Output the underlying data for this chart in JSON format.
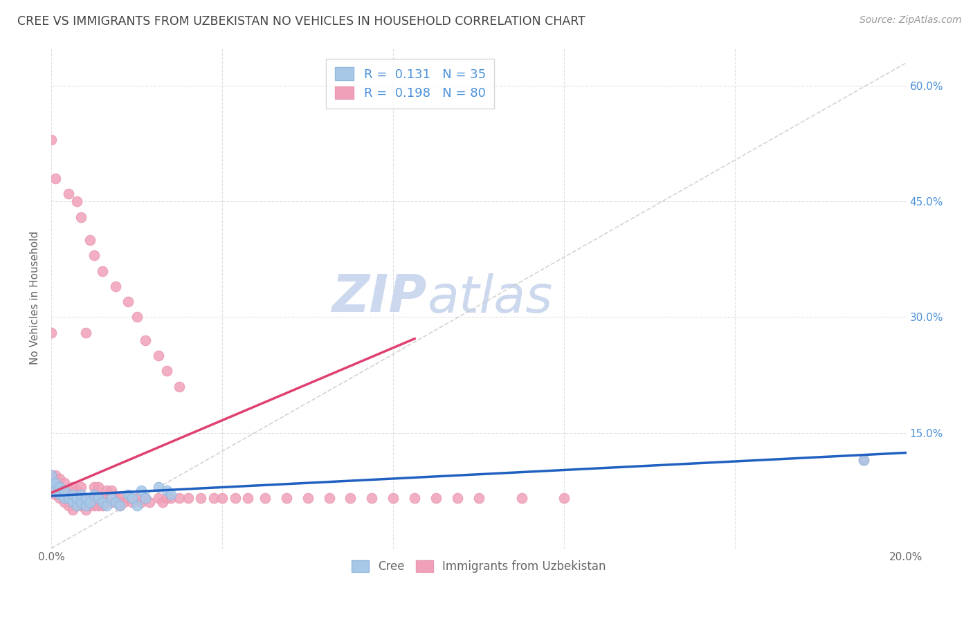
{
  "title": "CREE VS IMMIGRANTS FROM UZBEKISTAN NO VEHICLES IN HOUSEHOLD CORRELATION CHART",
  "source": "Source: ZipAtlas.com",
  "ylabel": "No Vehicles in Household",
  "xlabel": "",
  "xlim": [
    0.0,
    0.2
  ],
  "ylim": [
    0.0,
    0.65
  ],
  "xticks": [
    0.0,
    0.04,
    0.08,
    0.12,
    0.16,
    0.2
  ],
  "xtick_labels": [
    "0.0%",
    "",
    "",
    "",
    "",
    "20.0%"
  ],
  "yticks": [
    0.0,
    0.15,
    0.3,
    0.45,
    0.6
  ],
  "cree_color": "#a8c8e8",
  "uzbek_color": "#f0a0b8",
  "cree_line_color": "#2060c0",
  "uzbek_line_color": "#e04070",
  "diagonal_color": "#c8c8c8",
  "title_color": "#444444",
  "watermark_zip_color": "#c8d8f0",
  "watermark_atlas_color": "#c8d8f0",
  "right_tick_color": "#4a90d9",
  "cree_scatter_x": [
    0.0,
    0.0,
    0.001,
    0.001,
    0.002,
    0.002,
    0.003,
    0.003,
    0.004,
    0.005,
    0.005,
    0.006,
    0.006,
    0.007,
    0.007,
    0.008,
    0.008,
    0.009,
    0.01,
    0.011,
    0.012,
    0.013,
    0.014,
    0.015,
    0.016,
    0.018,
    0.019,
    0.02,
    0.021,
    0.022,
    0.025,
    0.027,
    0.028,
    0.19
  ],
  "cree_scatter_y": [
    0.085,
    0.095,
    0.075,
    0.085,
    0.07,
    0.08,
    0.065,
    0.075,
    0.065,
    0.06,
    0.07,
    0.055,
    0.065,
    0.06,
    0.07,
    0.055,
    0.065,
    0.06,
    0.07,
    0.065,
    0.06,
    0.055,
    0.065,
    0.06,
    0.055,
    0.07,
    0.065,
    0.055,
    0.075,
    0.065,
    0.08,
    0.075,
    0.07,
    0.115
  ],
  "uzbek_scatter_x": [
    0.0,
    0.0,
    0.0,
    0.001,
    0.001,
    0.001,
    0.001,
    0.002,
    0.002,
    0.002,
    0.002,
    0.003,
    0.003,
    0.003,
    0.003,
    0.004,
    0.004,
    0.004,
    0.005,
    0.005,
    0.005,
    0.005,
    0.006,
    0.006,
    0.006,
    0.007,
    0.007,
    0.007,
    0.008,
    0.008,
    0.008,
    0.009,
    0.009,
    0.01,
    0.01,
    0.01,
    0.011,
    0.011,
    0.011,
    0.012,
    0.012,
    0.013,
    0.013,
    0.014,
    0.014,
    0.015,
    0.016,
    0.016,
    0.017,
    0.018,
    0.019,
    0.02,
    0.021,
    0.022,
    0.023,
    0.025,
    0.026,
    0.027,
    0.028,
    0.03,
    0.032,
    0.035,
    0.038,
    0.04,
    0.043,
    0.046,
    0.05,
    0.055,
    0.06,
    0.065,
    0.07,
    0.075,
    0.08,
    0.085,
    0.09,
    0.095,
    0.1,
    0.11,
    0.12,
    0.19
  ],
  "uzbek_scatter_y": [
    0.08,
    0.09,
    0.095,
    0.07,
    0.075,
    0.085,
    0.095,
    0.065,
    0.07,
    0.08,
    0.09,
    0.06,
    0.065,
    0.075,
    0.085,
    0.055,
    0.065,
    0.075,
    0.05,
    0.06,
    0.07,
    0.08,
    0.055,
    0.065,
    0.075,
    0.055,
    0.065,
    0.08,
    0.05,
    0.06,
    0.28,
    0.055,
    0.065,
    0.055,
    0.065,
    0.08,
    0.055,
    0.065,
    0.08,
    0.055,
    0.065,
    0.06,
    0.075,
    0.06,
    0.075,
    0.065,
    0.055,
    0.065,
    0.06,
    0.065,
    0.06,
    0.065,
    0.06,
    0.065,
    0.06,
    0.065,
    0.06,
    0.065,
    0.065,
    0.065,
    0.065,
    0.065,
    0.065,
    0.065,
    0.065,
    0.065,
    0.065,
    0.065,
    0.065,
    0.065,
    0.065,
    0.065,
    0.065,
    0.065,
    0.065,
    0.065,
    0.065,
    0.065,
    0.065,
    0.115
  ],
  "uzbek_high_x": [
    0.0,
    0.0,
    0.001,
    0.004,
    0.006,
    0.007,
    0.009,
    0.01,
    0.012,
    0.015,
    0.018,
    0.02,
    0.022,
    0.025,
    0.027,
    0.03
  ],
  "uzbek_high_y": [
    0.53,
    0.28,
    0.48,
    0.46,
    0.45,
    0.43,
    0.4,
    0.38,
    0.36,
    0.34,
    0.32,
    0.3,
    0.27,
    0.25,
    0.23,
    0.21
  ],
  "cree_trendline_x": [
    0.0,
    0.2
  ],
  "cree_trendline_y": [
    0.068,
    0.124
  ],
  "uzbek_trendline_x": [
    0.0,
    0.085
  ],
  "uzbek_trendline_y": [
    0.072,
    0.272
  ]
}
